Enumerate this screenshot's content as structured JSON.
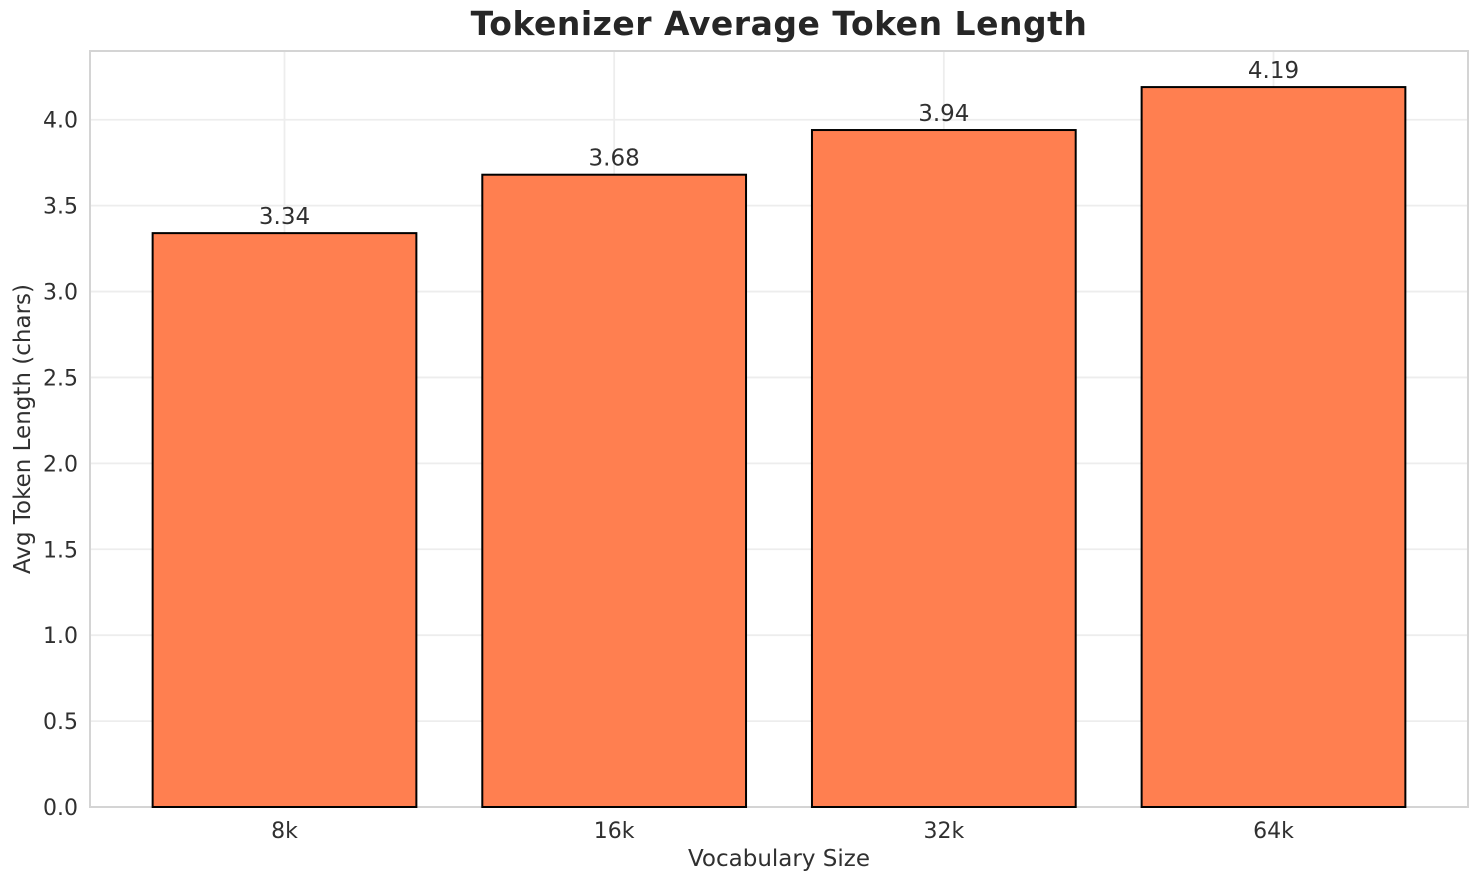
{
  "chart_data": {
    "type": "bar",
    "title": "Tokenizer Average Token Length",
    "xlabel": "Vocabulary Size",
    "ylabel": "Avg Token Length (chars)",
    "categories": [
      "8k",
      "16k",
      "32k",
      "64k"
    ],
    "values": [
      3.34,
      3.68,
      3.94,
      4.19
    ],
    "bar_labels": [
      "3.34",
      "3.68",
      "3.94",
      "4.19"
    ],
    "ylim": [
      0,
      4.4
    ],
    "ytick_labels": [
      "0.0",
      "0.5",
      "1.0",
      "1.5",
      "2.0",
      "2.5",
      "3.0",
      "3.5",
      "4.0"
    ],
    "grid": "on",
    "legend": "none",
    "colors": {
      "bar_fill": "#FF7F50",
      "bar_edge": "#000000",
      "grid": "#EDEDED",
      "spine": "#D4D4D4",
      "tick_text": "#303030",
      "title_text": "#262626",
      "background": "#FFFFFF"
    }
  }
}
